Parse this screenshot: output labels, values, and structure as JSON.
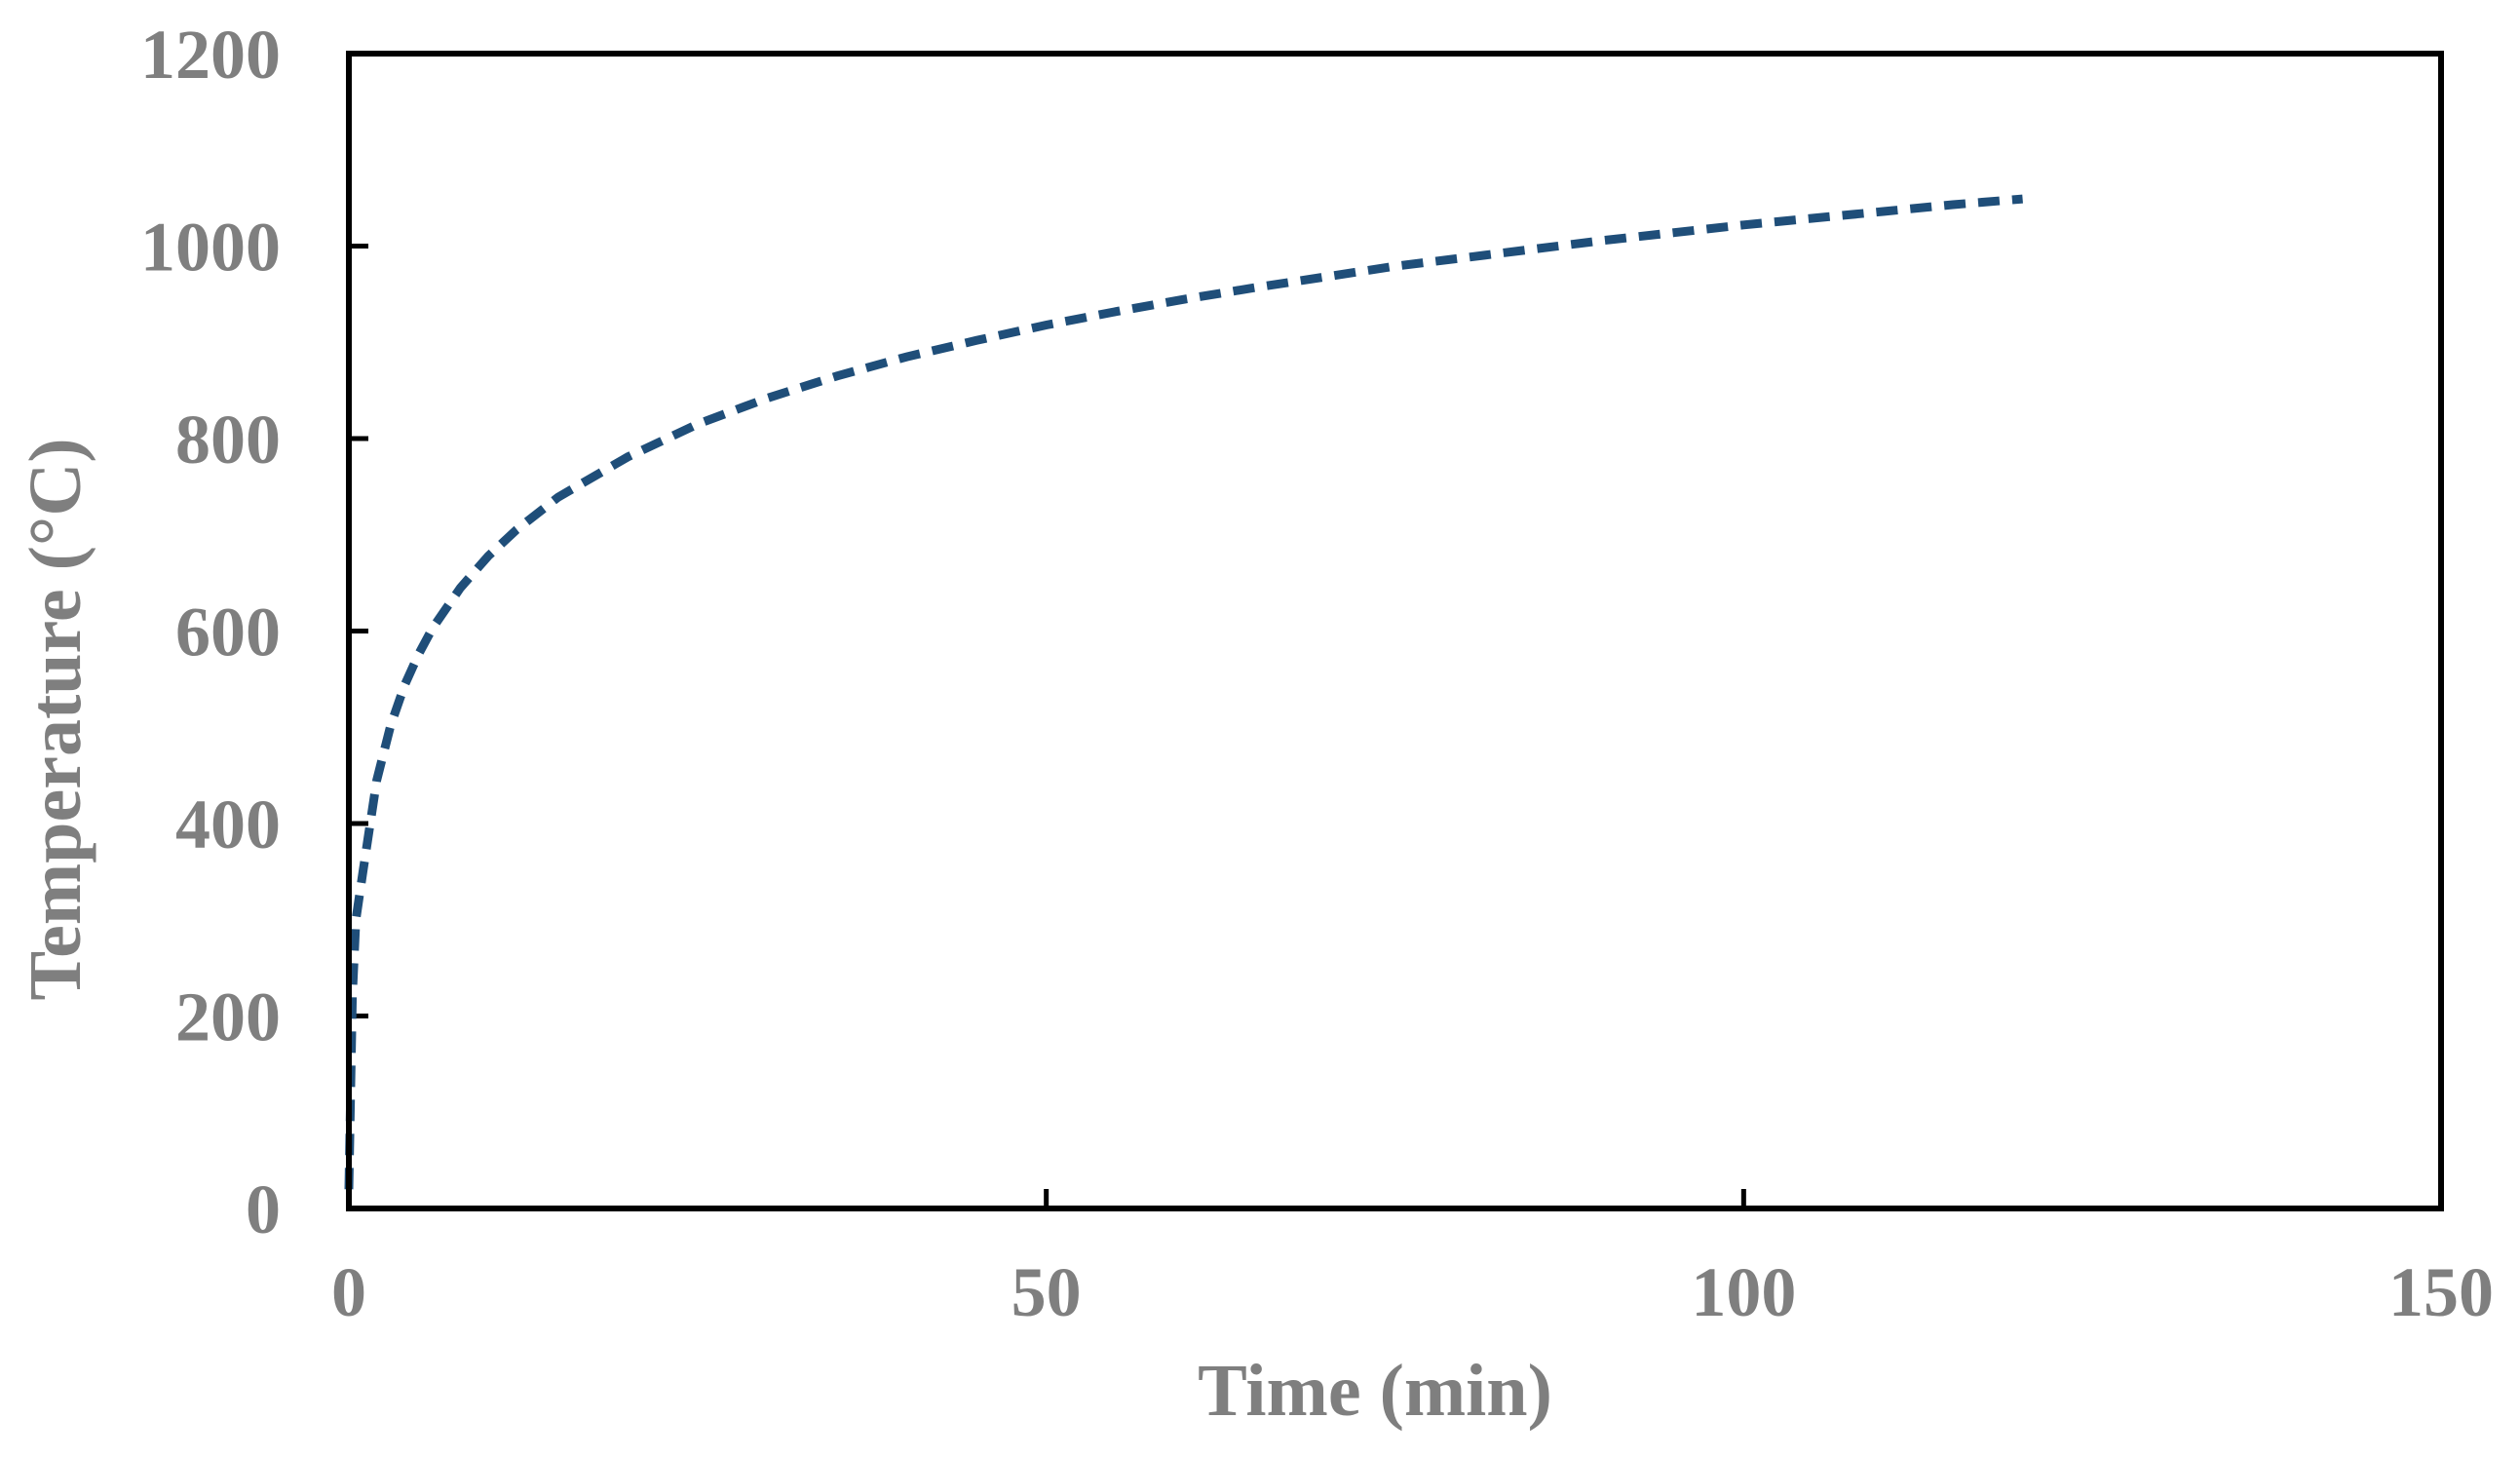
{
  "chart_data": {
    "type": "line",
    "title": "",
    "xlabel": "Time (min)",
    "ylabel": "Temperature (°C)",
    "xlim": [
      0,
      150
    ],
    "ylim": [
      0,
      1200
    ],
    "x_ticks": [
      "0",
      "50",
      "100",
      "150"
    ],
    "y_ticks": [
      "0",
      "200",
      "400",
      "600",
      "800",
      "1000",
      "1200"
    ],
    "grid": false,
    "legend": "none",
    "line_color": "#1f4e79",
    "line_style": "dashed",
    "series": [
      {
        "x": [
          0,
          0.25,
          0.5,
          1,
          2,
          3,
          4,
          5,
          6,
          8,
          10,
          12,
          15,
          20,
          25,
          30,
          35,
          40,
          45,
          50,
          55,
          60,
          65,
          70,
          75,
          80,
          85,
          90,
          95,
          100,
          105,
          110,
          115,
          120
        ],
        "values": [
          20,
          220,
          300,
          349,
          445,
          502,
          544,
          576,
          603,
          645,
          678,
          705,
          739,
          781,
          815,
          842,
          865,
          885,
          902,
          918,
          932,
          945,
          957,
          968,
          979,
          988,
          997,
          1006,
          1014,
          1022,
          1029,
          1036,
          1043,
          1049
        ]
      }
    ]
  }
}
